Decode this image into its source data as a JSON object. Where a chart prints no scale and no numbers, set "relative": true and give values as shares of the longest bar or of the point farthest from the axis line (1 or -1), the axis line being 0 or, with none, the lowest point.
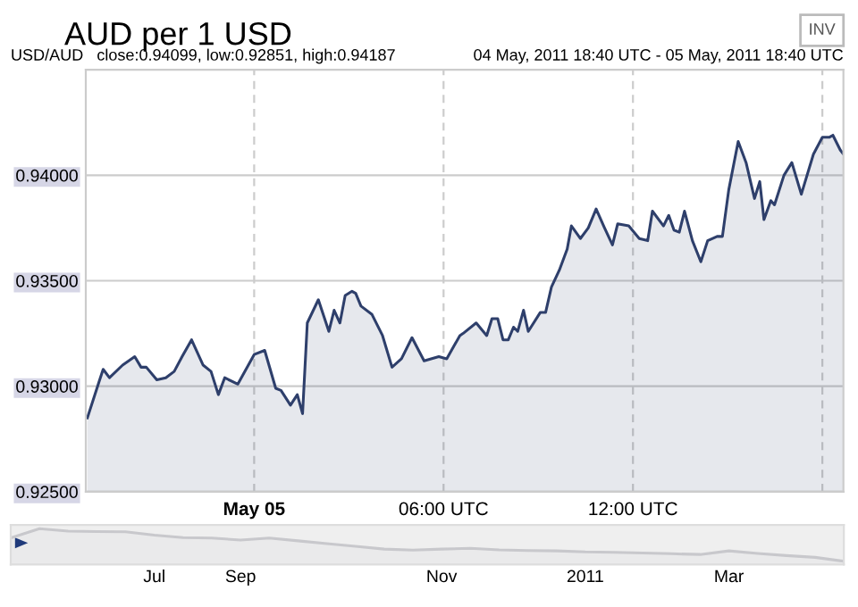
{
  "chart_data": [
    {
      "type": "area",
      "title": "AUD per 1 USD",
      "subtitle": "USD/AUD   close:0.94099, low:0.92851, high:0.94187",
      "annotations": [
        "04 May, 2011 18:40 UTC - 05 May, 2011 18:40 UTC",
        "INV"
      ],
      "series": [
        {
          "color": "#2e3f6b",
          "x": [
            "2011-05-04T18:43",
            "2011-05-04T19:05",
            "2011-05-04T19:13",
            "2011-05-04T19:25",
            "2011-05-04T19:50",
            "2011-05-04T20:13",
            "2011-05-04T20:25",
            "2011-05-04T20:35",
            "2011-05-04T20:55",
            "2011-05-04T21:12",
            "2011-05-04T21:28",
            "2011-05-04T21:43",
            "2011-05-04T22:01",
            "2011-05-04T22:23",
            "2011-05-04T22:38",
            "2011-05-04T22:52",
            "2011-05-04T23:04",
            "2011-05-04T23:29",
            "2011-05-05T00:00",
            "2011-05-05T00:20",
            "2011-05-05T00:41",
            "2011-05-05T00:51",
            "2011-05-05T01:09",
            "2011-05-05T01:22",
            "2011-05-05T01:32",
            "2011-05-05T01:41",
            "2011-05-05T02:02",
            "2011-05-05T02:22",
            "2011-05-05T02:32",
            "2011-05-05T02:43",
            "2011-05-05T02:53",
            "2011-05-05T03:06",
            "2011-05-05T03:13",
            "2011-05-05T03:23",
            "2011-05-05T03:44",
            "2011-05-05T04:04",
            "2011-05-05T04:22",
            "2011-05-05T04:40",
            "2011-05-05T05:00",
            "2011-05-05T05:23",
            "2011-05-05T05:51",
            "2011-05-05T06:06",
            "2011-05-05T06:31",
            "2011-05-05T06:37",
            "2011-05-05T07:02",
            "2011-05-05T07:22",
            "2011-05-05T07:32",
            "2011-05-05T07:43",
            "2011-05-05T07:53",
            "2011-05-05T08:03",
            "2011-05-05T08:13",
            "2011-05-05T08:21",
            "2011-05-05T08:32",
            "2011-05-05T08:41",
            "2011-05-05T09:04",
            "2011-05-05T09:14",
            "2011-05-05T09:25",
            "2011-05-05T09:40",
            "2011-05-05T09:55",
            "2011-05-05T10:03",
            "2011-05-05T10:20",
            "2011-05-05T10:35",
            "2011-05-05T10:50",
            "2011-05-05T11:06",
            "2011-05-05T11:21",
            "2011-05-05T11:31",
            "2011-05-05T11:52",
            "2011-05-05T12:12",
            "2011-05-05T12:28",
            "2011-05-05T12:37",
            "2011-05-05T12:58",
            "2011-05-05T13:08",
            "2011-05-05T13:18",
            "2011-05-05T13:28",
            "2011-05-05T13:38",
            "2011-05-05T13:53",
            "2011-05-05T14:09",
            "2011-05-05T14:22",
            "2011-05-05T14:40",
            "2011-05-05T14:50",
            "2011-05-05T15:02",
            "2011-05-05T15:20",
            "2011-05-05T15:35",
            "2011-05-05T15:51",
            "2011-05-05T16:01",
            "2011-05-05T16:09",
            "2011-05-05T16:22",
            "2011-05-05T16:29",
            "2011-05-05T16:47",
            "2011-05-05T17:02",
            "2011-05-05T17:20",
            "2011-05-05T17:43",
            "2011-05-05T18:00",
            "2011-05-05T18:13",
            "2011-05-05T18:20",
            "2011-05-05T18:34",
            "2011-05-05T18:40"
          ],
          "values": [
            0.9285,
            0.9302,
            0.9308,
            0.9304,
            0.931,
            0.9314,
            0.9309,
            0.9309,
            0.9303,
            0.9304,
            0.9307,
            0.9314,
            0.9322,
            0.931,
            0.9307,
            0.9296,
            0.9304,
            0.9301,
            0.9315,
            0.9317,
            0.9299,
            0.9298,
            0.9291,
            0.9296,
            0.9287,
            0.933,
            0.9341,
            0.9326,
            0.9336,
            0.933,
            0.9343,
            0.9345,
            0.9344,
            0.9338,
            0.9334,
            0.9324,
            0.9309,
            0.9313,
            0.9323,
            0.9312,
            0.9314,
            0.9313,
            0.9324,
            0.9325,
            0.933,
            0.9324,
            0.9332,
            0.9332,
            0.9322,
            0.9322,
            0.9328,
            0.9326,
            0.9336,
            0.9326,
            0.9335,
            0.9335,
            0.9347,
            0.9355,
            0.9365,
            0.9376,
            0.937,
            0.9375,
            0.9384,
            0.9375,
            0.9367,
            0.9377,
            0.9376,
            0.937,
            0.9369,
            0.9383,
            0.9376,
            0.9381,
            0.9374,
            0.9373,
            0.9383,
            0.9369,
            0.9359,
            0.9369,
            0.9371,
            0.9371,
            0.9393,
            0.9416,
            0.9406,
            0.9389,
            0.9397,
            0.9379,
            0.9388,
            0.9386,
            0.94,
            0.9406,
            0.9391,
            0.941,
            0.9418,
            0.9418,
            0.9419,
            0.9412,
            0.941
          ]
        }
      ],
      "xlim": [
        "2011-05-04T18:40",
        "2011-05-05T18:40"
      ],
      "xticks": [
        {
          "value": "2011-05-05T00:00",
          "label": "May 05"
        },
        {
          "value": "2011-05-05T06:00",
          "label": "06:00 UTC"
        },
        {
          "value": "2011-05-05T12:00",
          "label": "12:00 UTC"
        },
        {
          "value": "2011-05-05T18:00",
          "label": null
        }
      ],
      "ylim": [
        0.925,
        0.945
      ],
      "yticks": [
        {
          "value": 0.925,
          "label": "0.92500"
        },
        {
          "value": 0.93,
          "label": "0.93000"
        },
        {
          "value": 0.935,
          "label": "0.93500"
        },
        {
          "value": 0.94,
          "label": "0.94000"
        }
      ],
      "grid": true,
      "line_style": "solid"
    },
    {
      "type": "area",
      "relative": true,
      "color": "#c8c8cc",
      "categories": [
        null,
        null,
        null,
        null,
        null,
        "Jul",
        null,
        null,
        "Sep",
        null,
        null,
        null,
        null,
        null,
        null,
        "Nov",
        null,
        null,
        null,
        null,
        "2011",
        null,
        null,
        null,
        null,
        "Mar",
        null,
        null,
        null,
        null
      ],
      "values": [
        0.74,
        1,
        0.93,
        0.92,
        0.91,
        0.82,
        0.75,
        0.74,
        0.68,
        0.74,
        0.66,
        0.58,
        0.51,
        0.43,
        0.4,
        0.43,
        0.45,
        0.41,
        0.39,
        0.38,
        0.35,
        0.34,
        0.32,
        0.3,
        0.28,
        0.38,
        0.31,
        0.25,
        0.2,
        0.09
      ]
    }
  ]
}
